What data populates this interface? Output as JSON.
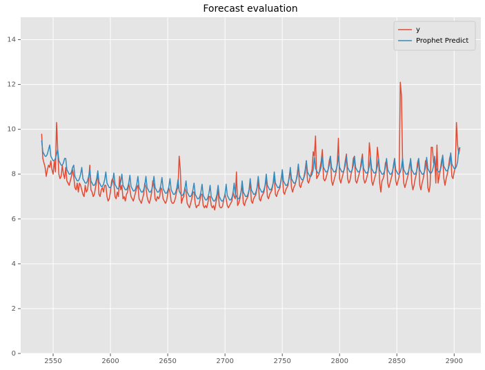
{
  "chart_data": {
    "type": "line",
    "title": "Forecast evaluation",
    "x": [
      2540,
      2541,
      2542,
      2543,
      2544,
      2545,
      2546,
      2547,
      2548,
      2549,
      2550,
      2551,
      2552,
      2553,
      2554,
      2555,
      2556,
      2557,
      2558,
      2559,
      2560,
      2561,
      2562,
      2563,
      2564,
      2565,
      2566,
      2567,
      2568,
      2569,
      2570,
      2571,
      2572,
      2573,
      2574,
      2575,
      2576,
      2577,
      2578,
      2579,
      2580,
      2581,
      2582,
      2583,
      2584,
      2585,
      2586,
      2587,
      2588,
      2589,
      2590,
      2591,
      2592,
      2593,
      2594,
      2595,
      2596,
      2597,
      2598,
      2599,
      2600,
      2601,
      2602,
      2603,
      2604,
      2605,
      2606,
      2607,
      2608,
      2609,
      2610,
      2611,
      2612,
      2613,
      2614,
      2615,
      2616,
      2617,
      2618,
      2619,
      2620,
      2621,
      2622,
      2623,
      2624,
      2625,
      2626,
      2627,
      2628,
      2629,
      2630,
      2631,
      2632,
      2633,
      2634,
      2635,
      2636,
      2637,
      2638,
      2639,
      2640,
      2641,
      2642,
      2643,
      2644,
      2645,
      2646,
      2647,
      2648,
      2649,
      2650,
      2651,
      2652,
      2653,
      2654,
      2655,
      2656,
      2657,
      2658,
      2659,
      2660,
      2661,
      2662,
      2663,
      2664,
      2665,
      2666,
      2667,
      2668,
      2669,
      2670,
      2671,
      2672,
      2673,
      2674,
      2675,
      2676,
      2677,
      2678,
      2679,
      2680,
      2681,
      2682,
      2683,
      2684,
      2685,
      2686,
      2687,
      2688,
      2689,
      2690,
      2691,
      2692,
      2693,
      2694,
      2695,
      2696,
      2697,
      2698,
      2699,
      2700,
      2701,
      2702,
      2703,
      2704,
      2705,
      2706,
      2707,
      2708,
      2709,
      2710,
      2711,
      2712,
      2713,
      2714,
      2715,
      2716,
      2717,
      2718,
      2719,
      2720,
      2721,
      2722,
      2723,
      2724,
      2725,
      2726,
      2727,
      2728,
      2729,
      2730,
      2731,
      2732,
      2733,
      2734,
      2735,
      2736,
      2737,
      2738,
      2739,
      2740,
      2741,
      2742,
      2743,
      2744,
      2745,
      2746,
      2747,
      2748,
      2749,
      2750,
      2751,
      2752,
      2753,
      2754,
      2755,
      2756,
      2757,
      2758,
      2759,
      2760,
      2761,
      2762,
      2763,
      2764,
      2765,
      2766,
      2767,
      2768,
      2769,
      2770,
      2771,
      2772,
      2773,
      2774,
      2775,
      2776,
      2777,
      2778,
      2779,
      2780,
      2781,
      2782,
      2783,
      2784,
      2785,
      2786,
      2787,
      2788,
      2789,
      2790,
      2791,
      2792,
      2793,
      2794,
      2795,
      2796,
      2797,
      2798,
      2799,
      2800,
      2801,
      2802,
      2803,
      2804,
      2805,
      2806,
      2807,
      2808,
      2809,
      2810,
      2811,
      2812,
      2813,
      2814,
      2815,
      2816,
      2817,
      2818,
      2819,
      2820,
      2821,
      2822,
      2823,
      2824,
      2825,
      2826,
      2827,
      2828,
      2829,
      2830,
      2831,
      2832,
      2833,
      2834,
      2835,
      2836,
      2837,
      2838,
      2839,
      2840,
      2841,
      2842,
      2843,
      2844,
      2845,
      2846,
      2847,
      2848,
      2849,
      2850,
      2851,
      2852,
      2853,
      2854,
      2855,
      2856,
      2857,
      2858,
      2859,
      2860,
      2861,
      2862,
      2863,
      2864,
      2865,
      2866,
      2867,
      2868,
      2869,
      2870,
      2871,
      2872,
      2873,
      2874,
      2875,
      2876,
      2877,
      2878,
      2879,
      2880,
      2881,
      2882,
      2883,
      2884,
      2885,
      2886,
      2887,
      2888,
      2889,
      2890,
      2891,
      2892,
      2893,
      2894,
      2895,
      2896,
      2897,
      2898,
      2899,
      2900,
      2901,
      2902,
      2903,
      2904,
      2905
    ],
    "series": [
      {
        "name": "y",
        "color": "#E24A33",
        "values": [
          9.8,
          8.7,
          8.5,
          8.3,
          7.9,
          8.2,
          8.4,
          8.3,
          8.6,
          8.2,
          8.0,
          8.6,
          8.1,
          10.3,
          9.1,
          8.0,
          7.8,
          7.9,
          8.4,
          8.0,
          7.8,
          8.3,
          7.7,
          7.6,
          7.5,
          7.7,
          7.9,
          8.2,
          7.9,
          7.4,
          7.3,
          7.6,
          7.2,
          7.6,
          7.5,
          7.3,
          7.1,
          7.0,
          7.5,
          7.2,
          7.3,
          7.7,
          8.4,
          7.3,
          7.2,
          7.0,
          7.1,
          7.4,
          7.7,
          8.0,
          7.1,
          7.0,
          7.3,
          7.4,
          7.2,
          7.5,
          7.5,
          7.0,
          6.8,
          6.9,
          7.2,
          7.7,
          7.8,
          7.6,
          7.0,
          6.9,
          7.2,
          7.0,
          7.9,
          7.3,
          7.5,
          6.9,
          7.0,
          6.8,
          7.1,
          7.2,
          7.6,
          7.3,
          7.0,
          6.9,
          6.8,
          7.0,
          7.2,
          7.4,
          7.5,
          6.9,
          6.8,
          6.7,
          6.9,
          7.1,
          7.6,
          7.4,
          7.0,
          6.8,
          6.7,
          6.9,
          7.2,
          7.7,
          7.5,
          6.9,
          6.8,
          7.0,
          6.9,
          7.0,
          7.4,
          7.3,
          6.9,
          6.8,
          6.7,
          6.8,
          7.1,
          7.4,
          7.2,
          6.8,
          6.7,
          6.7,
          6.8,
          7.0,
          7.3,
          7.4,
          8.8,
          8.2,
          6.7,
          6.9,
          7.0,
          7.4,
          7.2,
          6.7,
          6.6,
          6.5,
          6.7,
          6.9,
          7.2,
          7.2,
          6.7,
          6.5,
          6.6,
          6.6,
          6.8,
          7.1,
          7.1,
          6.6,
          6.5,
          6.6,
          6.5,
          6.7,
          7.0,
          7.0,
          6.6,
          6.5,
          6.6,
          6.4,
          6.7,
          7.0,
          7.3,
          6.6,
          6.5,
          6.5,
          6.6,
          6.9,
          7.1,
          6.9,
          6.6,
          6.5,
          6.6,
          6.7,
          6.8,
          7.2,
          7.0,
          6.9,
          8.1,
          6.6,
          6.7,
          6.9,
          7.2,
          7.5,
          6.7,
          6.6,
          6.8,
          6.9,
          7.0,
          7.3,
          7.6,
          6.8,
          6.7,
          6.9,
          7.0,
          7.1,
          7.4,
          7.7,
          6.9,
          6.8,
          7.0,
          7.1,
          7.2,
          7.5,
          7.8,
          7.0,
          6.9,
          7.1,
          7.2,
          7.3,
          7.6,
          7.9,
          7.1,
          7.0,
          7.2,
          7.3,
          7.4,
          7.8,
          8.1,
          7.2,
          7.1,
          7.3,
          7.4,
          7.5,
          7.9,
          8.2,
          7.4,
          7.2,
          7.4,
          7.5,
          7.7,
          8.0,
          8.4,
          7.5,
          7.4,
          7.6,
          7.7,
          7.9,
          8.2,
          8.6,
          7.7,
          7.6,
          7.8,
          8.0,
          8.2,
          9.0,
          8.8,
          9.7,
          7.8,
          7.9,
          8.0,
          8.3,
          8.6,
          9.1,
          7.8,
          7.7,
          7.8,
          8.0,
          8.2,
          8.6,
          8.8,
          7.7,
          7.5,
          7.7,
          7.9,
          8.1,
          8.5,
          9.6,
          7.8,
          7.6,
          7.8,
          8.0,
          8.2,
          8.6,
          8.9,
          7.8,
          7.6,
          7.7,
          8.0,
          8.2,
          8.7,
          8.8,
          7.7,
          7.6,
          7.8,
          8.0,
          8.2,
          8.6,
          8.9,
          7.8,
          7.6,
          7.7,
          7.9,
          8.1,
          9.4,
          8.8,
          7.7,
          7.5,
          7.7,
          7.9,
          8.1,
          9.2,
          8.7,
          7.6,
          7.2,
          7.7,
          7.8,
          8.0,
          8.5,
          8.6,
          7.6,
          7.4,
          7.6,
          7.8,
          8.0,
          8.4,
          8.7,
          7.7,
          7.5,
          7.7,
          7.9,
          12.1,
          11.5,
          8.5,
          7.6,
          7.4,
          7.6,
          7.8,
          8.0,
          8.4,
          8.6,
          7.6,
          7.3,
          7.5,
          7.8,
          8.0,
          8.5,
          8.7,
          7.5,
          7.3,
          7.6,
          7.8,
          8.1,
          8.6,
          8.6,
          7.4,
          7.2,
          7.5,
          9.2,
          9.2,
          8.5,
          8.7,
          7.6,
          9.3,
          7.6,
          7.9,
          8.2,
          8.6,
          8.8,
          7.8,
          7.5,
          7.8,
          8.0,
          8.3,
          8.7,
          8.9,
          7.9,
          7.8,
          8.1,
          8.3,
          10.3,
          9.3,
          8.9,
          9.2
        ]
      },
      {
        "name": "Prophet Predict",
        "color": "#348ABD",
        "values": [
          9.5,
          9.0,
          8.9,
          8.8,
          8.8,
          8.9,
          9.1,
          9.3,
          8.8,
          8.7,
          8.6,
          8.6,
          8.7,
          8.9,
          9.1,
          8.6,
          8.5,
          8.4,
          8.4,
          8.5,
          8.7,
          8.7,
          8.2,
          8.1,
          8.0,
          8.0,
          8.1,
          8.3,
          8.4,
          7.9,
          7.8,
          7.7,
          7.7,
          7.8,
          8.0,
          8.3,
          7.8,
          7.7,
          7.6,
          7.6,
          7.7,
          7.9,
          8.2,
          7.7,
          7.6,
          7.5,
          7.5,
          7.6,
          7.8,
          8.15,
          7.65,
          7.55,
          7.45,
          7.45,
          7.55,
          7.75,
          8.1,
          7.6,
          7.5,
          7.4,
          7.4,
          7.5,
          7.7,
          8.05,
          7.55,
          7.45,
          7.35,
          7.35,
          7.45,
          7.65,
          8.0,
          7.5,
          7.4,
          7.3,
          7.3,
          7.4,
          7.6,
          7.95,
          7.45,
          7.35,
          7.25,
          7.25,
          7.35,
          7.55,
          7.9,
          7.4,
          7.3,
          7.2,
          7.2,
          7.3,
          7.5,
          7.9,
          7.4,
          7.3,
          7.2,
          7.2,
          7.3,
          7.5,
          7.9,
          7.4,
          7.3,
          7.2,
          7.2,
          7.3,
          7.5,
          7.85,
          7.35,
          7.25,
          7.15,
          7.15,
          7.25,
          7.45,
          7.8,
          7.3,
          7.2,
          7.1,
          7.1,
          7.2,
          7.4,
          7.75,
          7.25,
          7.15,
          7.05,
          7.05,
          7.15,
          7.35,
          7.7,
          7.2,
          7.1,
          7.0,
          7.0,
          7.1,
          7.3,
          7.6,
          7.1,
          7.0,
          6.9,
          6.9,
          7.0,
          7.2,
          7.55,
          7.05,
          6.95,
          6.85,
          6.85,
          6.95,
          7.15,
          7.5,
          7.0,
          6.9,
          6.8,
          6.8,
          6.9,
          7.1,
          7.5,
          7.0,
          6.9,
          6.8,
          6.8,
          6.9,
          7.1,
          7.55,
          7.05,
          6.95,
          6.85,
          6.85,
          6.95,
          7.15,
          7.6,
          7.1,
          7.0,
          6.9,
          6.9,
          7.0,
          7.2,
          7.7,
          7.2,
          7.1,
          7.0,
          7.0,
          7.1,
          7.3,
          7.8,
          7.3,
          7.2,
          7.1,
          7.1,
          7.2,
          7.4,
          7.9,
          7.4,
          7.3,
          7.2,
          7.2,
          7.3,
          7.5,
          8.0,
          7.5,
          7.4,
          7.3,
          7.3,
          7.4,
          7.6,
          8.1,
          7.6,
          7.5,
          7.4,
          7.4,
          7.5,
          7.7,
          8.2,
          7.7,
          7.6,
          7.5,
          7.5,
          7.6,
          7.8,
          8.3,
          7.8,
          7.7,
          7.6,
          7.6,
          7.7,
          7.9,
          8.45,
          7.95,
          7.85,
          7.75,
          7.75,
          7.85,
          8.05,
          8.6,
          8.1,
          8.0,
          7.9,
          7.9,
          8.0,
          8.2,
          8.75,
          8.25,
          8.15,
          8.05,
          8.05,
          8.15,
          8.35,
          8.8,
          8.3,
          8.2,
          8.1,
          8.1,
          8.2,
          8.4,
          8.8,
          8.3,
          8.2,
          8.1,
          8.1,
          8.2,
          8.4,
          8.8,
          8.3,
          8.2,
          8.1,
          8.1,
          8.2,
          8.4,
          8.8,
          8.3,
          8.2,
          8.1,
          8.1,
          8.2,
          8.4,
          8.8,
          8.3,
          8.2,
          8.1,
          8.1,
          8.2,
          8.4,
          8.75,
          8.25,
          8.15,
          8.05,
          8.05,
          8.15,
          8.35,
          8.75,
          8.25,
          8.15,
          8.05,
          8.05,
          8.15,
          8.35,
          8.7,
          8.2,
          8.1,
          8.0,
          8.0,
          8.1,
          8.3,
          8.7,
          8.2,
          8.1,
          8.0,
          8.0,
          8.1,
          8.3,
          8.7,
          8.2,
          8.1,
          8.0,
          8.0,
          8.1,
          8.3,
          8.7,
          8.2,
          8.1,
          8.0,
          8.0,
          8.1,
          8.3,
          8.7,
          8.2,
          8.1,
          8.0,
          8.0,
          8.1,
          8.3,
          8.7,
          8.2,
          8.1,
          8.0,
          8.0,
          8.1,
          8.3,
          8.75,
          8.25,
          8.15,
          8.05,
          8.05,
          8.15,
          8.35,
          8.8,
          8.3,
          8.2,
          8.1,
          8.1,
          8.2,
          8.4,
          8.85,
          8.35,
          8.25,
          8.15,
          8.15,
          8.25,
          8.45,
          8.95,
          8.45,
          8.35,
          8.25,
          8.25,
          8.35,
          8.55,
          9.1,
          9.2
        ]
      }
    ],
    "xlim": [
      2521.7,
      2923.3
    ],
    "ylim": [
      0,
      15
    ],
    "xticks": [
      2550,
      2600,
      2650,
      2700,
      2750,
      2800,
      2850,
      2900
    ],
    "yticks": [
      0,
      2,
      4,
      6,
      8,
      10,
      12,
      14
    ],
    "grid": true,
    "legend": "upper right"
  }
}
